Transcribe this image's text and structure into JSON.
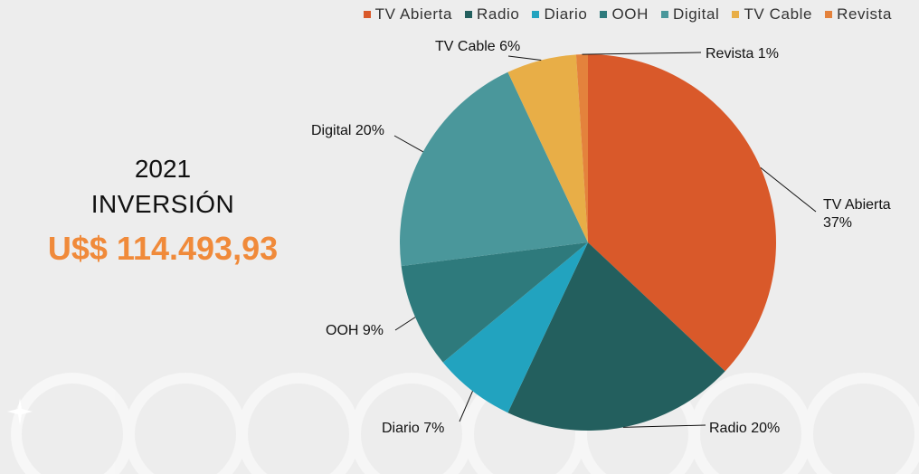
{
  "headline": {
    "year": "2021",
    "label": "INVERSIÓN",
    "amount": "U$$ 114.493,93"
  },
  "colors": {
    "amount": "#f08a3a",
    "background": "#ededed"
  },
  "chart_data": {
    "type": "pie",
    "start": "12 o'clock",
    "direction": "clockwise",
    "legend_position": "top",
    "slices": [
      {
        "name": "TV Abierta",
        "value": 37,
        "label": "TV Abierta 37%",
        "color": "#d9592a"
      },
      {
        "name": "Radio",
        "value": 20,
        "label": "Radio 20%",
        "color": "#235f5e"
      },
      {
        "name": "Diario",
        "value": 7,
        "label": "Diario 7%",
        "color": "#22a3bf"
      },
      {
        "name": "OOH",
        "value": 9,
        "label": "OOH 9%",
        "color": "#2e7a7c"
      },
      {
        "name": "Digital",
        "value": 20,
        "label": "Digital 20%",
        "color": "#4a979b"
      },
      {
        "name": "TV Cable",
        "value": 6,
        "label": "TV Cable 6%",
        "color": "#e8ae47"
      },
      {
        "name": "Revista",
        "value": 1,
        "label": "Revista 1%",
        "color": "#e4823c"
      }
    ]
  }
}
